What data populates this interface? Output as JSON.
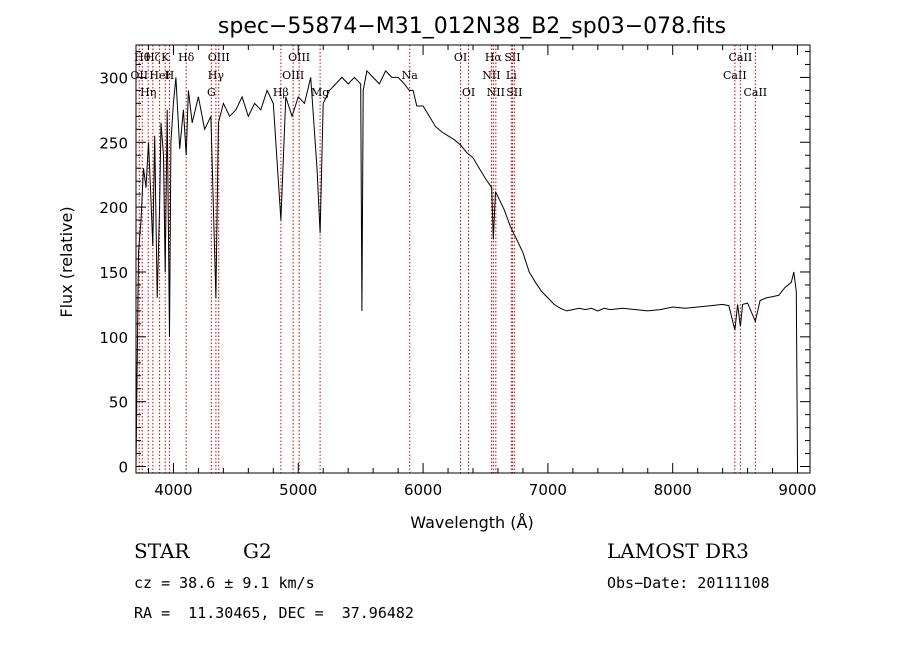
{
  "chart_data": {
    "type": "line",
    "title": "spec−55874−M31_012N38_B2_sp03−078.fits",
    "xlabel": "Wavelength (Å)",
    "ylabel": "Flux (relative)",
    "xlim": [
      3700,
      9100
    ],
    "ylim": [
      -5,
      325
    ],
    "xticks": [
      4000,
      5000,
      6000,
      7000,
      8000,
      9000
    ],
    "yticks": [
      0,
      50,
      100,
      150,
      200,
      250,
      300
    ],
    "grid": false,
    "line_color": "#000000",
    "marker_color": "#cc0000",
    "series": [
      {
        "x": [
          3700,
          3720,
          3740,
          3760,
          3780,
          3800,
          3820,
          3835,
          3850,
          3870,
          3889,
          3900,
          3920,
          3934,
          3950,
          3968,
          3980,
          4000,
          4020,
          4050,
          4080,
          4102,
          4120,
          4150,
          4200,
          4250,
          4300,
          4340,
          4360,
          4400,
          4450,
          4500,
          4550,
          4600,
          4650,
          4700,
          4750,
          4800,
          4861,
          4900,
          4950,
          5000,
          5050,
          5100,
          5150,
          5175,
          5200,
          5250,
          5300,
          5350,
          5400,
          5450,
          5500,
          5510,
          5520,
          5550,
          5600,
          5650,
          5700,
          5750,
          5800,
          5850,
          5890,
          5920,
          5950,
          6000,
          6050,
          6100,
          6150,
          6200,
          6250,
          6300,
          6350,
          6400,
          6450,
          6500,
          6550,
          6563,
          6580,
          6600,
          6650,
          6700,
          6750,
          6800,
          6850,
          6900,
          6950,
          7000,
          7050,
          7100,
          7150,
          7200,
          7250,
          7300,
          7350,
          7400,
          7450,
          7500,
          7600,
          7700,
          7800,
          7900,
          8000,
          8100,
          8200,
          8300,
          8400,
          8450,
          8498,
          8520,
          8542,
          8560,
          8600,
          8662,
          8700,
          8750,
          8800,
          8850,
          8900,
          8950,
          8970,
          8990,
          9000
        ],
        "y": [
          0,
          165,
          190,
          230,
          215,
          250,
          205,
          170,
          255,
          130,
          200,
          265,
          240,
          150,
          275,
          100,
          250,
          280,
          300,
          245,
          275,
          240,
          290,
          265,
          285,
          260,
          270,
          130,
          265,
          280,
          270,
          275,
          285,
          270,
          280,
          275,
          290,
          280,
          190,
          285,
          270,
          285,
          280,
          300,
          230,
          180,
          280,
          290,
          295,
          300,
          295,
          300,
          295,
          120,
          290,
          305,
          300,
          295,
          305,
          300,
          300,
          295,
          290,
          290,
          278,
          278,
          270,
          262,
          258,
          255,
          252,
          248,
          242,
          238,
          230,
          222,
          215,
          175,
          212,
          208,
          198,
          185,
          175,
          165,
          150,
          142,
          135,
          130,
          125,
          122,
          120,
          121,
          122,
          121,
          122,
          120,
          122,
          121,
          122,
          121,
          120,
          121,
          123,
          122,
          123,
          124,
          125,
          124,
          105,
          125,
          108,
          125,
          126,
          112,
          128,
          130,
          131,
          132,
          138,
          142,
          150,
          135,
          0
        ]
      }
    ],
    "line_markers": [
      {
        "x": 3726,
        "label": "OII",
        "row": 1
      },
      {
        "x": 3750,
        "label": "Hθ",
        "row": 0
      },
      {
        "x": 3798,
        "label": "Hη",
        "row": 2
      },
      {
        "x": 3835,
        "label": "Hζ",
        "row": 0
      },
      {
        "x": 3889,
        "label": "HeI",
        "row": 1
      },
      {
        "x": 3934,
        "label": "K",
        "row": 0
      },
      {
        "x": 3968,
        "label": "H",
        "row": 1
      },
      {
        "x": 4102,
        "label": "Hδ",
        "row": 0
      },
      {
        "x": 4304,
        "label": "G",
        "row": 2
      },
      {
        "x": 4340,
        "label": "Hγ",
        "row": 1
      },
      {
        "x": 4363,
        "label": "OIII",
        "row": 0
      },
      {
        "x": 4861,
        "label": "Hβ",
        "row": 2
      },
      {
        "x": 4959,
        "label": "OIII",
        "row": 1
      },
      {
        "x": 5007,
        "label": "OIII",
        "row": 0
      },
      {
        "x": 5175,
        "label": "Mg",
        "row": 2
      },
      {
        "x": 5893,
        "label": "Na",
        "row": 1
      },
      {
        "x": 6300,
        "label": "OI",
        "row": 0
      },
      {
        "x": 6364,
        "label": "OI",
        "row": 2
      },
      {
        "x": 6548,
        "label": "NII",
        "row": 1
      },
      {
        "x": 6563,
        "label": "Hα",
        "row": 0
      },
      {
        "x": 6583,
        "label": "NII",
        "row": 2
      },
      {
        "x": 6707,
        "label": "Li",
        "row": 1
      },
      {
        "x": 6716,
        "label": "SII",
        "row": 0
      },
      {
        "x": 6731,
        "label": "SII",
        "row": 2
      },
      {
        "x": 8498,
        "label": "CaII",
        "row": 1
      },
      {
        "x": 8542,
        "label": "CaII",
        "row": 0
      },
      {
        "x": 8662,
        "label": "CaII",
        "row": 2
      }
    ]
  },
  "info": {
    "class": "STAR",
    "subclass": "G2",
    "survey": "LAMOST DR3",
    "cz": "cz = 38.6 ± 9.1 km/s",
    "obs_date": "Obs−Date: 20111108",
    "radec": "RA =  11.30465, DEC =  37.96482"
  }
}
